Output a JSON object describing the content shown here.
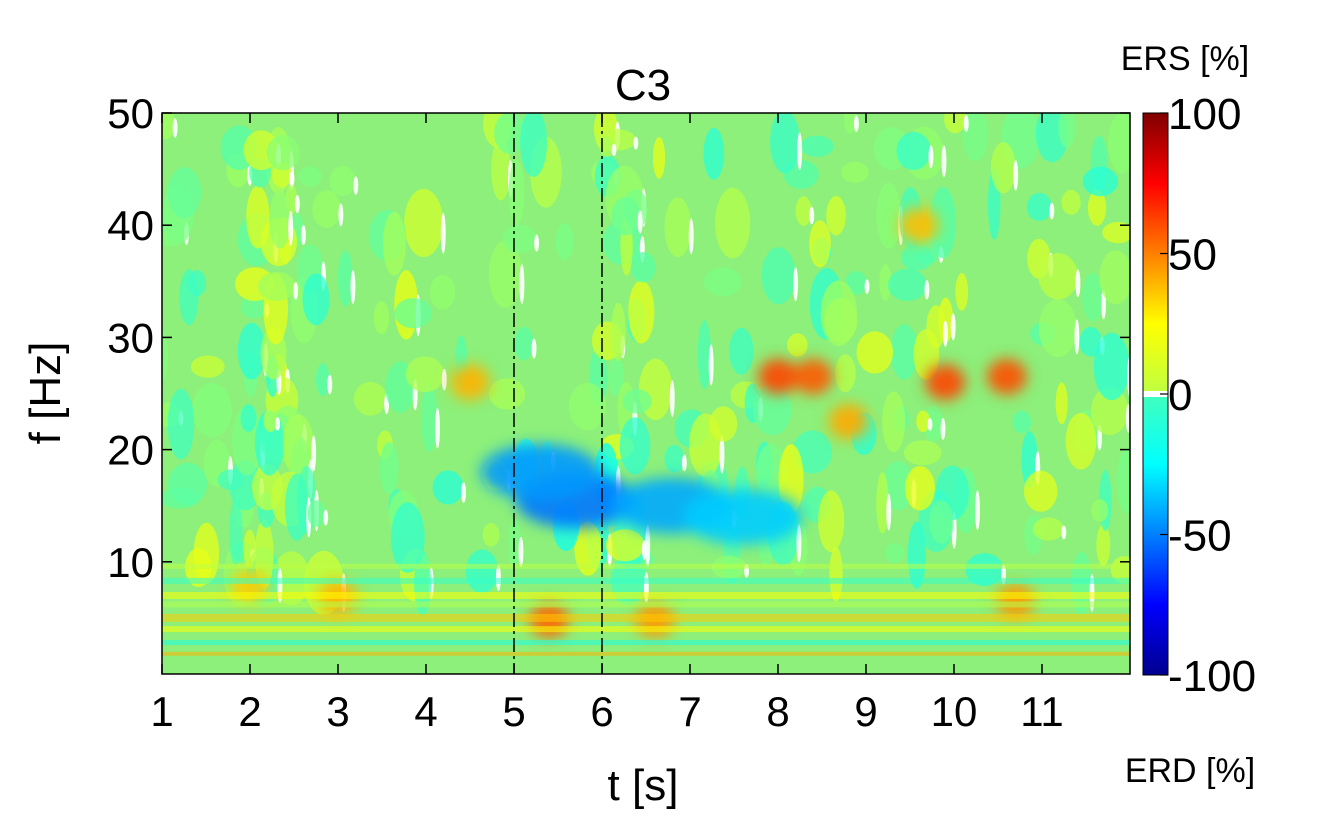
{
  "chart_data": {
    "type": "heatmap",
    "title": "C3",
    "xlabel": "t [s]",
    "ylabel": "f [Hz]",
    "xlim": [
      1,
      12
    ],
    "ylim": [
      0,
      50
    ],
    "xticks": [
      1,
      2,
      3,
      4,
      5,
      6,
      7,
      8,
      9,
      10,
      11
    ],
    "yticks": [
      10,
      20,
      30,
      40,
      50
    ],
    "event_lines": [
      5,
      6
    ],
    "colorbar": {
      "range": [
        -100,
        100
      ],
      "ticks": [
        100,
        50,
        0,
        -50,
        -100
      ],
      "top_label": "ERS [%]",
      "bottom_label": "ERD [%]",
      "colormap": "jet",
      "zero_color": "#ffffff"
    },
    "features": [
      {
        "t": 5.7,
        "f": 15.5,
        "value": -52
      },
      {
        "t": 6.8,
        "f": 15.0,
        "value": -42
      },
      {
        "t": 5.3,
        "f": 18.0,
        "value": -45
      },
      {
        "t": 7.6,
        "f": 14.0,
        "value": -35
      },
      {
        "t": 8.0,
        "f": 26.5,
        "value": 62
      },
      {
        "t": 8.4,
        "f": 26.5,
        "value": 58
      },
      {
        "t": 9.9,
        "f": 26.0,
        "value": 62
      },
      {
        "t": 10.6,
        "f": 26.5,
        "value": 60
      },
      {
        "t": 8.8,
        "f": 22.5,
        "value": 42
      },
      {
        "t": 5.4,
        "f": 4.8,
        "value": 55
      },
      {
        "t": 6.6,
        "f": 4.8,
        "value": 45
      },
      {
        "t": 3.0,
        "f": 6.8,
        "value": 40
      },
      {
        "t": 10.7,
        "f": 6.5,
        "value": 45
      },
      {
        "t": 4.5,
        "f": 26.0,
        "value": 40
      },
      {
        "t": 9.6,
        "f": 40.0,
        "value": 38
      },
      {
        "t": 2.0,
        "f": 7.8,
        "value": 35
      }
    ]
  }
}
